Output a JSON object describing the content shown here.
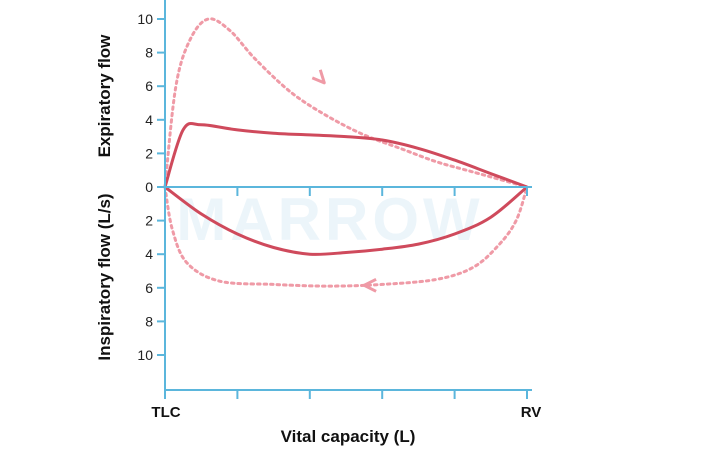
{
  "chart_data": {
    "type": "line",
    "title": "",
    "watermark": "MARROW",
    "xlabel": "Vital capacity (L)",
    "x_end_labels": [
      "TLC",
      "RV"
    ],
    "ylabel_upper": "Expiratory flow",
    "ylabel_lower": "Inspiratory flow (L/s)",
    "y_ticks_expiratory": [
      10,
      8,
      6,
      4,
      2,
      0
    ],
    "y_ticks_inspiratory": [
      2,
      4,
      6,
      8,
      10
    ],
    "ylim": [
      -10,
      10
    ],
    "grid": false,
    "colors": {
      "axis": "#5bb6dc",
      "solid_loop": "#cf4a5c",
      "dotted_loop": "#ef9aa6",
      "text": "#111111"
    },
    "series": [
      {
        "style": "solid",
        "expiratory": {
          "x": [
            0,
            0.05,
            0.1,
            0.2,
            0.3,
            0.4,
            0.5,
            0.6,
            0.7,
            0.8,
            0.9,
            1.0
          ],
          "y": [
            0,
            3.4,
            3.7,
            3.4,
            3.2,
            3.1,
            3.0,
            2.8,
            2.3,
            1.6,
            0.8,
            0
          ]
        },
        "inspiratory": {
          "x": [
            0,
            0.1,
            0.2,
            0.3,
            0.4,
            0.5,
            0.6,
            0.7,
            0.8,
            0.9,
            1.0
          ],
          "y": [
            0,
            -1.6,
            -2.8,
            -3.6,
            -4.0,
            -3.9,
            -3.7,
            -3.4,
            -2.8,
            -1.8,
            0
          ]
        }
      },
      {
        "style": "dotted",
        "expiratory": {
          "x": [
            0,
            0.03,
            0.07,
            0.12,
            0.18,
            0.25,
            0.35,
            0.45,
            0.55,
            0.65,
            0.75,
            0.85,
            1.0
          ],
          "y": [
            0,
            6.0,
            8.8,
            10.0,
            9.3,
            7.6,
            5.6,
            4.2,
            3.1,
            2.3,
            1.5,
            0.9,
            0
          ]
        },
        "inspiratory": {
          "x": [
            0,
            0.02,
            0.06,
            0.15,
            0.3,
            0.45,
            0.6,
            0.75,
            0.85,
            0.92,
            0.97,
            1.0
          ],
          "y": [
            0,
            -2.5,
            -4.5,
            -5.6,
            -5.8,
            -5.9,
            -5.8,
            -5.5,
            -4.8,
            -3.5,
            -2.0,
            0
          ]
        }
      }
    ]
  }
}
